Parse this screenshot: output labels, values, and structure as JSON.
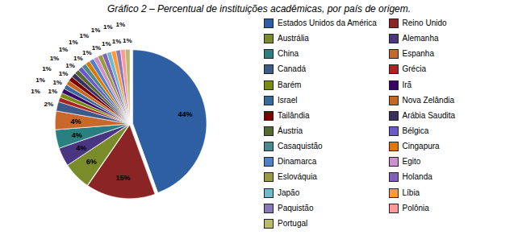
{
  "chart_data": {
    "type": "pie",
    "title": "Gráfico 2 – Percentual de instituições acadêmicas, por país de origem.",
    "categories": [
      "Estados Unidos da América",
      "Reino Unido",
      "Austrália",
      "Alemanha",
      "China",
      "Espanha",
      "Canadá",
      "Grécia",
      "Barém",
      "Irã",
      "Israel",
      "Nova Zelândia",
      "Tailândia",
      "Arábia Saudita",
      "Áustria",
      "Bélgica",
      "Casaquistão",
      "Cingapura",
      "Dinamarca",
      "Egito",
      "Eslováquia",
      "Holanda",
      "Japão",
      "Líbia",
      "Paquistão",
      "Polônia",
      "Portugal"
    ],
    "values": [
      44,
      15,
      6,
      4,
      4,
      4,
      2,
      1,
      1,
      1,
      1,
      1,
      1,
      1,
      1,
      1,
      1,
      1,
      1,
      1,
      1,
      1,
      1,
      1,
      1,
      1,
      1
    ],
    "value_labels": [
      "44%",
      "15%",
      "6%",
      "4%",
      "4%",
      "4%",
      "2%",
      "1%",
      "1%",
      "1%",
      "1%",
      "1%",
      "1%",
      "1%",
      "1%",
      "1%",
      "1%",
      "1%",
      "1%",
      "1%",
      "1%",
      "1%",
      "1%",
      "1%",
      "1%",
      "1%",
      "1%"
    ],
    "colors": [
      "#2E5FA3",
      "#8B2525",
      "#7A8C2A",
      "#4A3580",
      "#2A8080",
      "#C8682A",
      "#3D5A8A",
      "#AA2222",
      "#7A8C10",
      "#3A006A",
      "#3A6A9A",
      "#C86820",
      "#7A0000",
      "#3A3060",
      "#556B2F",
      "#6A58CC",
      "#4A8A90",
      "#E07800",
      "#5080C8",
      "#CC90CC",
      "#9A9A40",
      "#8060BB",
      "#70B8CC",
      "#FF9933",
      "#8878B8",
      "#FF9999",
      "#BBBB70"
    ],
    "data_labels": true,
    "legend": "right"
  }
}
